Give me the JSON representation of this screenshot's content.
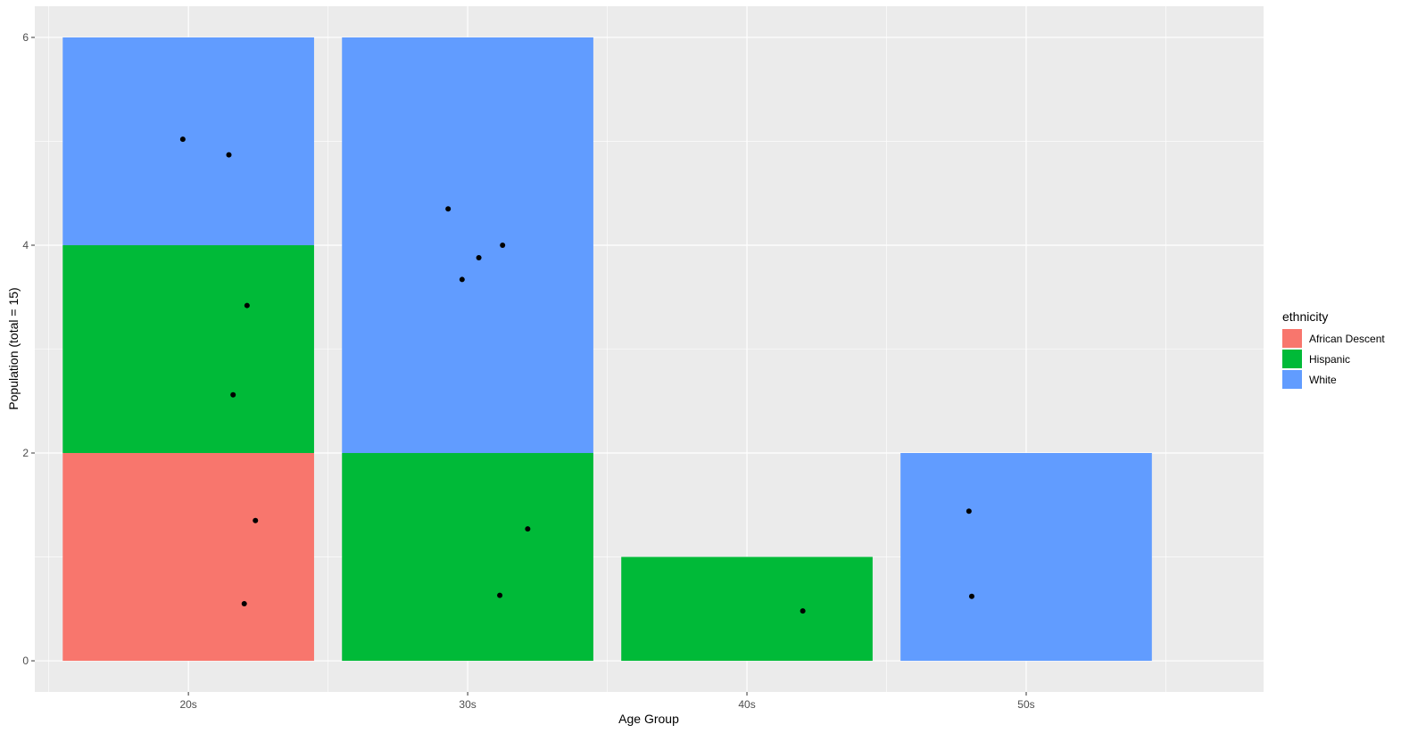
{
  "chart_data": {
    "type": "bar",
    "stacked": true,
    "xlabel": "Age Group",
    "ylabel": "Population (total = 15)",
    "categories": [
      "20s",
      "30s",
      "40s",
      "50s"
    ],
    "series": [
      {
        "name": "African Descent",
        "color": "#F8766D",
        "values": [
          2,
          0,
          0,
          0
        ]
      },
      {
        "name": "Hispanic",
        "color": "#00BA38",
        "values": [
          2,
          2,
          1,
          0
        ]
      },
      {
        "name": "White",
        "color": "#619CFF",
        "values": [
          2,
          4,
          0,
          2
        ]
      }
    ],
    "ylim": [
      -0.3,
      6.3
    ],
    "yticks": [
      0,
      2,
      4,
      6
    ],
    "grid": true,
    "legend": {
      "title": "ethnicity",
      "position": "right"
    },
    "jitter_points": [
      {
        "x": 19.8,
        "y": 5.02
      },
      {
        "x": 21.45,
        "y": 4.87
      },
      {
        "x": 22.1,
        "y": 3.42
      },
      {
        "x": 21.6,
        "y": 2.56
      },
      {
        "x": 22.4,
        "y": 1.35
      },
      {
        "x": 22.0,
        "y": 0.55
      },
      {
        "x": 29.3,
        "y": 4.35
      },
      {
        "x": 31.25,
        "y": 4.0
      },
      {
        "x": 30.4,
        "y": 3.88
      },
      {
        "x": 29.8,
        "y": 3.67
      },
      {
        "x": 32.15,
        "y": 1.27
      },
      {
        "x": 31.15,
        "y": 0.63
      },
      {
        "x": 42.0,
        "y": 0.48
      },
      {
        "x": 47.95,
        "y": 1.44
      },
      {
        "x": 48.05,
        "y": 0.62
      }
    ]
  }
}
